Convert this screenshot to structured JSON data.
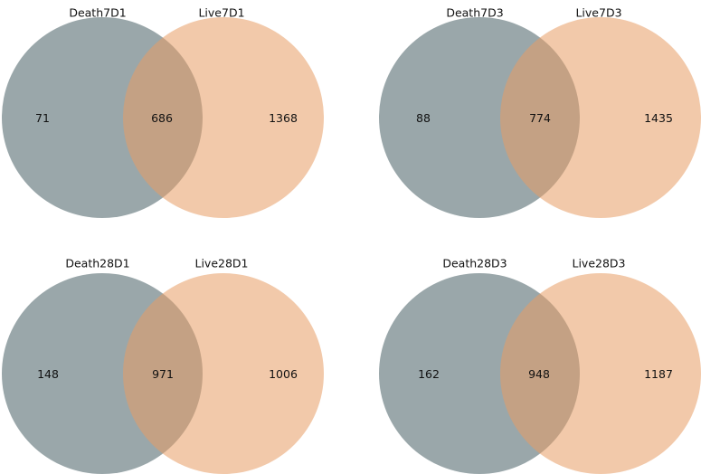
{
  "colors": {
    "set_a": "#475f64",
    "set_b": "#e89d65",
    "circle_opacity": 0.55
  },
  "diagrams": [
    {
      "set_a_label": "Death7D1",
      "set_b_label": "Live7D1",
      "only_a": "71",
      "both": "686",
      "only_b": "1368"
    },
    {
      "set_a_label": "Death7D3",
      "set_b_label": "Live7D3",
      "only_a": "88",
      "both": "774",
      "only_b": "1435"
    },
    {
      "set_a_label": "Death28D1",
      "set_b_label": "Live28D1",
      "only_a": "148",
      "both": "971",
      "only_b": "1006"
    },
    {
      "set_a_label": "Death28D3",
      "set_b_label": "Live28D3",
      "only_a": "162",
      "both": "948",
      "only_b": "1187"
    }
  ]
}
